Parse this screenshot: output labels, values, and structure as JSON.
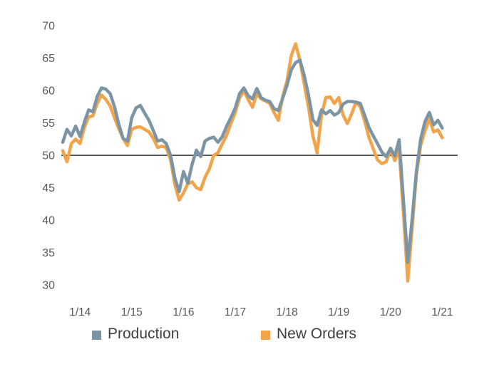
{
  "page": {
    "background": "#ffffff"
  },
  "colors": {
    "production_line": "#7C95A5",
    "new_orders_line": "#F2A44A",
    "reference_line": "#414141",
    "axis_text": "#595959",
    "legend_text": "#3f3f3f"
  },
  "legend": {
    "items": [
      {
        "label": "Production"
      },
      {
        "label": "New Orders"
      }
    ]
  },
  "chart_data": {
    "type": "line",
    "title": "",
    "xlabel": "",
    "ylabel": "",
    "grid": false,
    "legend_position": "bottom",
    "reference_line_value": 50,
    "y_axis": {
      "ticks": [
        70,
        65,
        60,
        55,
        50,
        45,
        40,
        35,
        30
      ],
      "range": [
        28,
        72
      ]
    },
    "x_axis": {
      "tick_labels": [
        "1/14",
        "1/15",
        "1/16",
        "1/17",
        "1/18",
        "1/19",
        "1/20",
        "1/21"
      ],
      "cadence": "monthly"
    },
    "months": [
      "9/13",
      "10/13",
      "11/13",
      "12/13",
      "1/14",
      "2/14",
      "3/14",
      "4/14",
      "5/14",
      "6/14",
      "7/14",
      "8/14",
      "9/14",
      "10/14",
      "11/14",
      "12/14",
      "1/15",
      "2/15",
      "3/15",
      "4/15",
      "5/15",
      "6/15",
      "7/15",
      "8/15",
      "9/15",
      "10/15",
      "11/15",
      "12/15",
      "1/16",
      "2/16",
      "3/16",
      "4/16",
      "5/16",
      "6/16",
      "7/16",
      "8/16",
      "9/16",
      "10/16",
      "11/16",
      "12/16",
      "1/17",
      "2/17",
      "3/17",
      "4/17",
      "5/17",
      "6/17",
      "7/17",
      "8/17",
      "9/17",
      "10/17",
      "11/17",
      "12/17",
      "1/18",
      "2/18",
      "3/18",
      "4/18",
      "5/18",
      "6/18",
      "7/18",
      "8/18",
      "9/18",
      "10/18",
      "11/18",
      "12/18",
      "1/19",
      "2/19",
      "3/19",
      "4/19",
      "5/19",
      "6/19",
      "7/19",
      "8/19",
      "9/19",
      "10/19",
      "11/19",
      "12/19",
      "1/20",
      "2/20",
      "3/20",
      "4/20",
      "5/20",
      "6/20",
      "7/20",
      "8/20",
      "9/20",
      "10/20",
      "11/20",
      "12/20",
      "1/21"
    ],
    "series": [
      {
        "name": "Production",
        "color": "#7C95A5",
        "values": [
          52.0,
          54.0,
          53.0,
          54.5,
          52.9,
          55.1,
          57.0,
          56.7,
          59.1,
          60.4,
          60.2,
          59.5,
          57.5,
          54.8,
          52.6,
          52.2,
          55.8,
          57.3,
          57.7,
          56.5,
          55.4,
          53.8,
          52.2,
          52.4,
          51.8,
          50.0,
          46.5,
          44.4,
          47.5,
          45.7,
          48.6,
          50.8,
          49.8,
          52.2,
          52.6,
          52.8,
          52.0,
          52.9,
          54.5,
          55.8,
          57.3,
          59.5,
          60.4,
          59.2,
          58.7,
          60.3,
          58.9,
          58.5,
          58.3,
          57.2,
          56.9,
          58.8,
          60.8,
          63.2,
          64.3,
          64.7,
          62.3,
          59.3,
          55.5,
          54.6,
          57.0,
          56.4,
          56.9,
          56.2,
          56.6,
          57.9,
          58.3,
          58.3,
          58.2,
          58.0,
          56.2,
          54.3,
          53.0,
          51.8,
          50.5,
          49.8,
          51.1,
          49.9,
          52.4,
          43.0,
          33.5,
          40.0,
          47.5,
          52.5,
          55.2,
          56.6,
          54.7,
          55.4,
          54.2
        ]
      },
      {
        "name": "New Orders",
        "color": "#F2A44A",
        "values": [
          50.7,
          49.0,
          51.8,
          52.5,
          51.8,
          54.3,
          55.9,
          56.1,
          58.0,
          59.3,
          58.6,
          57.6,
          55.8,
          54.1,
          52.6,
          51.5,
          54.0,
          54.3,
          54.4,
          54.0,
          53.6,
          52.6,
          51.2,
          51.4,
          51.2,
          49.3,
          45.5,
          43.1,
          44.2,
          45.6,
          45.9,
          45.0,
          44.7,
          46.6,
          47.9,
          50.0,
          50.4,
          51.8,
          53.1,
          54.9,
          56.6,
          58.8,
          60.0,
          58.6,
          57.4,
          59.5,
          58.7,
          58.4,
          58.0,
          56.6,
          55.4,
          59.1,
          61.5,
          65.4,
          67.2,
          64.6,
          61.0,
          57.4,
          53.0,
          50.4,
          56.2,
          58.9,
          59.0,
          58.0,
          58.9,
          56.2,
          54.9,
          56.4,
          58.2,
          57.5,
          55.3,
          52.8,
          51.0,
          49.3,
          48.7,
          49.0,
          50.9,
          49.2,
          50.9,
          41.0,
          30.6,
          38.5,
          47.0,
          51.5,
          53.8,
          55.6,
          53.6,
          53.9,
          52.7
        ]
      }
    ]
  }
}
